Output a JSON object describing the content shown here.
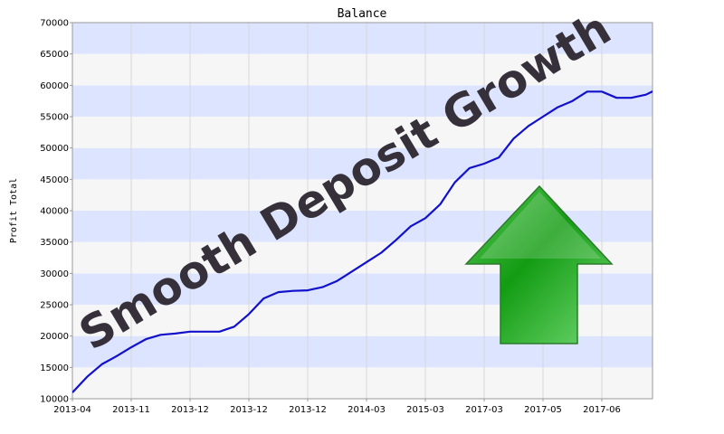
{
  "chart_data": {
    "type": "line",
    "title": "Balance",
    "ylabel": "Profit Total",
    "xlabel": "",
    "ylim": [
      10000,
      70000
    ],
    "y_ticks": [
      10000,
      15000,
      20000,
      25000,
      30000,
      35000,
      40000,
      45000,
      50000,
      55000,
      60000,
      65000,
      70000
    ],
    "x_tick_labels": [
      "2013-04",
      "2013-11",
      "2013-12",
      "2013-12",
      "2013-12",
      "2014-03",
      "2015-03",
      "2017-03",
      "2017-05",
      "2017-06"
    ],
    "grid": true,
    "series": [
      {
        "color": "#1111cc",
        "x": [
          0,
          0.25,
          0.5,
          0.75,
          1.0,
          1.25,
          1.5,
          1.75,
          2.0,
          2.25,
          2.5,
          2.75,
          3.0,
          3.25,
          3.5,
          3.75,
          4.0,
          4.25,
          4.5,
          4.75,
          5.0,
          5.25,
          5.5,
          5.75,
          6.0,
          6.25,
          6.5,
          6.75,
          7.0,
          7.25,
          7.5,
          7.75,
          8.0,
          8.25,
          8.5,
          8.75,
          9.0,
          9.25,
          9.5,
          9.75,
          9.9
        ],
        "values": [
          11000,
          13500,
          15500,
          16800,
          18200,
          19500,
          20200,
          20400,
          20700,
          20700,
          20700,
          21500,
          23500,
          26000,
          27000,
          27200,
          27300,
          27800,
          28800,
          30300,
          31800,
          33300,
          35300,
          37500,
          38800,
          41000,
          44500,
          46800,
          47500,
          48500,
          51500,
          53500,
          55000,
          56500,
          57500,
          59000,
          59000,
          58000,
          58000,
          58500,
          59200
        ]
      }
    ]
  },
  "overlay": {
    "headline": "Smooth Deposit Growth",
    "arrow_icon": "up-arrow-icon",
    "arrow_color": "#1a9a1a"
  },
  "colors": {
    "band_blue": "#dde4ff",
    "band_gray": "#f6f6f6",
    "line": "#1111cc"
  }
}
